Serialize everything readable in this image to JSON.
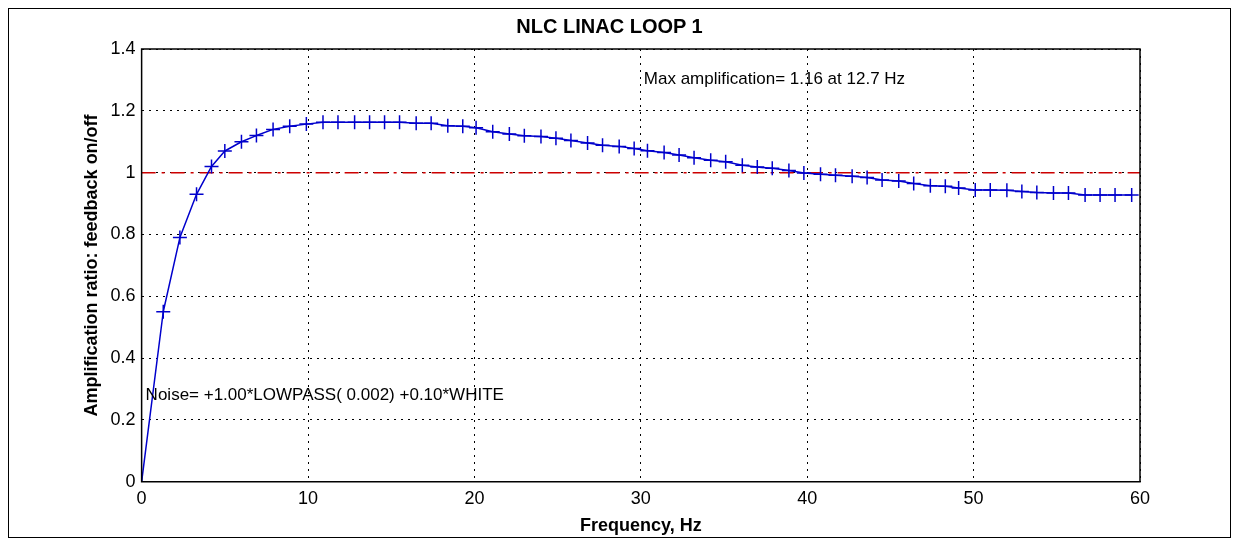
{
  "chart_data": {
    "type": "line",
    "title": "NLC LINAC LOOP 1",
    "xlabel": "Frequency, Hz",
    "ylabel": "Amplification ratio: feedback on/off",
    "x": [
      0,
      1.3,
      2.3,
      3.3,
      4.2,
      5.0,
      6.0,
      6.9,
      7.9,
      8.9,
      9.9,
      10.9,
      11.8,
      12.8,
      13.7,
      14.6,
      15.5,
      16.5,
      17.4,
      18.4,
      19.3,
      20.1,
      21.1,
      22.1,
      23.0,
      24.0,
      24.9,
      25.8,
      26.8,
      27.7,
      28.7,
      29.6,
      30.4,
      31.4,
      32.3,
      33.2,
      34.2,
      35.1,
      36.1,
      37.0,
      37.9,
      38.9,
      39.8,
      40.8,
      41.7,
      42.7,
      43.6,
      44.5,
      45.5,
      46.4,
      47.4,
      48.3,
      49.1,
      50.1,
      51.0,
      52.0,
      52.9,
      53.8,
      54.8,
      55.7,
      56.7,
      57.6,
      58.5,
      59.5
    ],
    "series": [
      {
        "color": "#0000cc",
        "values": [
          0,
          0.55,
          0.79,
          0.93,
          1.02,
          1.07,
          1.1,
          1.12,
          1.14,
          1.15,
          1.157,
          1.163,
          1.163,
          1.163,
          1.163,
          1.163,
          1.163,
          1.16,
          1.16,
          1.152,
          1.15,
          1.145,
          1.132,
          1.125,
          1.119,
          1.117,
          1.111,
          1.104,
          1.096,
          1.089,
          1.085,
          1.078,
          1.071,
          1.065,
          1.057,
          1.048,
          1.04,
          1.035,
          1.024,
          1.018,
          1.014,
          1.007,
          0.999,
          0.995,
          0.992,
          0.988,
          0.984,
          0.976,
          0.973,
          0.965,
          0.958,
          0.956,
          0.95,
          0.944,
          0.944,
          0.943,
          0.939,
          0.936,
          0.934,
          0.934,
          0.928,
          0.928,
          0.928,
          0.928
        ]
      }
    ],
    "xlim": [
      0,
      60
    ],
    "xticks": [
      0,
      10,
      20,
      30,
      40,
      50,
      60
    ],
    "ylim": [
      0,
      1.4
    ],
    "yticks": [
      0,
      0.2,
      0.4,
      0.6,
      0.8,
      1,
      1.2,
      1.4
    ],
    "grid": true,
    "marker": "cross",
    "line_style": "solid",
    "ref_lines": [
      {
        "axis": "y",
        "value": 1,
        "color": "#cc0000",
        "line_style": "dashed"
      }
    ],
    "annotations": [
      "Max amplification= 1.16 at 12.7 Hz",
      "Noise= +1.00*LOWPASS( 0.002) +0.10*WHITE"
    ]
  }
}
